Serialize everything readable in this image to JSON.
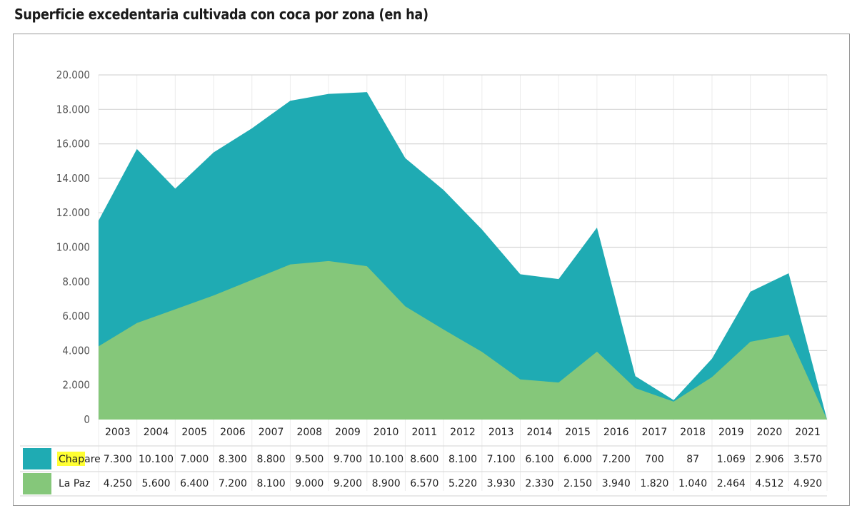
{
  "title": "Superficie excedentaria cultivada con coca por zona (en ha)",
  "chart_data": {
    "type": "area",
    "stacked": true,
    "title": "Superficie excedentaria cultivada con coca por zona (en ha)",
    "xlabel": "",
    "ylabel": "",
    "ylim": [
      0,
      20000
    ],
    "grid": true,
    "legend": "bottom-left (data table)",
    "yticks": [
      {
        "value": 0,
        "label": "0"
      },
      {
        "value": 2000,
        "label": "2.000"
      },
      {
        "value": 4000,
        "label": "4.000"
      },
      {
        "value": 6000,
        "label": "6.000"
      },
      {
        "value": 8000,
        "label": "8.000"
      },
      {
        "value": 10000,
        "label": "10.000"
      },
      {
        "value": 12000,
        "label": "12.000"
      },
      {
        "value": 14000,
        "label": "14.000"
      },
      {
        "value": 16000,
        "label": "16.000"
      },
      {
        "value": 18000,
        "label": "18.000"
      },
      {
        "value": 20000,
        "label": "20.000"
      }
    ],
    "categories": [
      "2003",
      "2004",
      "2005",
      "2006",
      "2007",
      "2008",
      "2009",
      "2010",
      "2011",
      "2012",
      "2013",
      "2014",
      "2015",
      "2016",
      "2017",
      "2018",
      "2019",
      "2020",
      "2021"
    ],
    "series": [
      {
        "name": "La Paz",
        "color": "#85c77a",
        "values": [
          4250,
          5600,
          6400,
          7200,
          8100,
          9000,
          9200,
          8900,
          6570,
          5220,
          3930,
          2330,
          2150,
          3940,
          1820,
          1040,
          2464,
          4512,
          4920
        ],
        "labels": [
          "4.250",
          "5.600",
          "6.400",
          "7.200",
          "8.100",
          "9.000",
          "9.200",
          "8.900",
          "6.570",
          "5.220",
          "3.930",
          "2.330",
          "2.150",
          "3.940",
          "1.820",
          "1.040",
          "2.464",
          "4.512",
          "4.920"
        ]
      },
      {
        "name": "Chapare",
        "color": "#1fabb3",
        "highlight": "#ffff33",
        "values": [
          7300,
          10100,
          7000,
          8300,
          8800,
          9500,
          9700,
          10100,
          8600,
          8100,
          7100,
          6100,
          6000,
          7200,
          700,
          87,
          1069,
          2906,
          3570
        ],
        "labels": [
          "7.300",
          "10.100",
          "7.000",
          "8.300",
          "8.800",
          "9.500",
          "9.700",
          "10.100",
          "8.600",
          "8.100",
          "7.100",
          "6.100",
          "6.000",
          "7.200",
          "700",
          "87",
          "1.069",
          "2.906",
          "3.570"
        ]
      }
    ]
  }
}
